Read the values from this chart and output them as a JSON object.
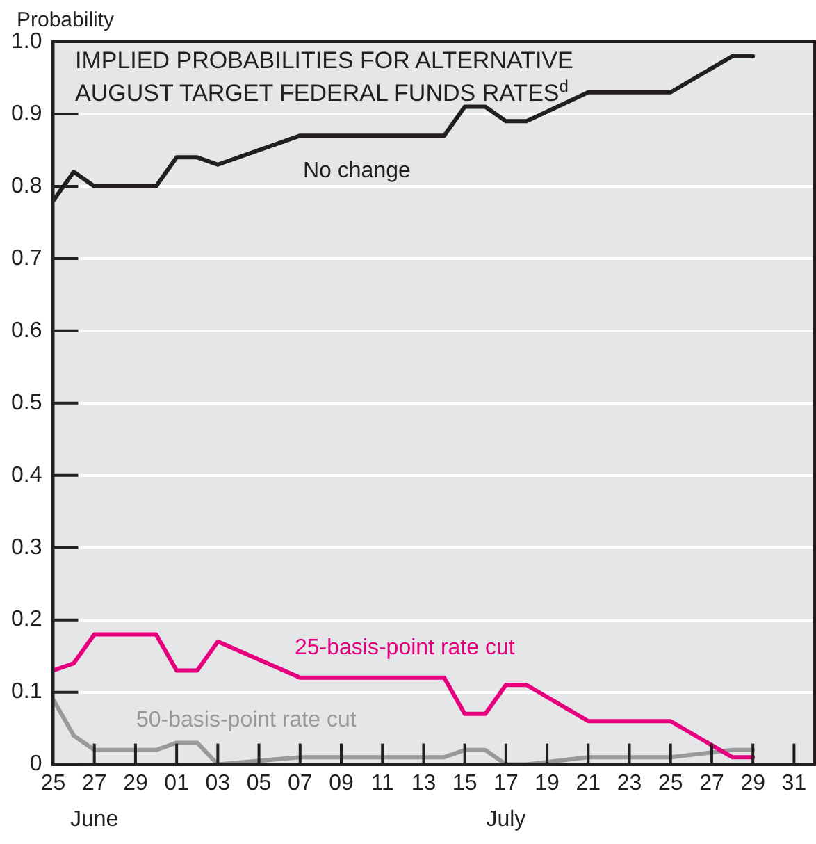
{
  "chart_data": {
    "type": "line",
    "title": "IMPLIED PROBABILITIES FOR ALTERNATIVE AUGUST TARGET FEDERAL FUNDS RATES$^{d}$",
    "ylabel": "Probability",
    "xlim": [
      "--06-25",
      "--08-01"
    ],
    "xticks": [
      {
        "value": "--06-25",
        "label": "25"
      },
      {
        "value": "--06-27",
        "label": "27"
      },
      {
        "value": "--06-29",
        "label": "29"
      },
      {
        "value": "--07-01",
        "label": "01"
      },
      {
        "value": "--07-03",
        "label": "03"
      },
      {
        "value": "--07-05",
        "label": "05"
      },
      {
        "value": "--07-07",
        "label": "07"
      },
      {
        "value": "--07-09",
        "label": "09"
      },
      {
        "value": "--07-11",
        "label": "11"
      },
      {
        "value": "--07-13",
        "label": "13"
      },
      {
        "value": "--07-15",
        "label": "15"
      },
      {
        "value": "--07-17",
        "label": "17"
      },
      {
        "value": "--07-19",
        "label": "19"
      },
      {
        "value": "--07-21",
        "label": "21"
      },
      {
        "value": "--07-23",
        "label": "23"
      },
      {
        "value": "--07-25",
        "label": "25"
      },
      {
        "value": "--07-27",
        "label": "27"
      },
      {
        "value": "--07-29",
        "label": "29"
      },
      {
        "value": "--07-31",
        "label": "31"
      }
    ],
    "ylim": [
      0,
      1
    ],
    "yticks": [
      0,
      {
        "value": 0.1,
        "label": "0.1"
      },
      {
        "value": 0.2,
        "label": "0.2"
      },
      {
        "value": 0.3,
        "label": "0.3"
      },
      {
        "value": 0.4,
        "label": "0.4"
      },
      {
        "value": 0.5,
        "label": "0.5"
      },
      {
        "value": 0.6,
        "label": "0.6"
      },
      {
        "value": 0.7,
        "label": "0.7"
      },
      {
        "value": 0.8,
        "label": "0.8"
      },
      {
        "value": 0.9,
        "label": "0.9"
      },
      {
        "value": 1,
        "label": "1.0"
      }
    ],
    "grid": "y",
    "legend": false,
    "marker": "none",
    "x": [
      "--06-25",
      "--06-26",
      "--06-27",
      "--06-30",
      "--07-01",
      "--07-02",
      "--07-03",
      "--07-07",
      "--07-14",
      "--07-15",
      "--07-16",
      "--07-17",
      "--07-18",
      "--07-21",
      "--07-25",
      "--07-28",
      "--07-29"
    ],
    "series": [
      {
        "name": "No change",
        "color": "#231f20",
        "values": [
          0.78,
          0.82,
          0.8,
          0.8,
          0.84,
          0.84,
          0.83,
          0.87,
          0.87,
          0.91,
          0.91,
          0.89,
          0.89,
          0.93,
          0.93,
          0.98,
          0.98
        ]
      },
      {
        "name": "25-basis-point rate cut",
        "color": "#e6007e",
        "values": [
          0.13,
          0.14,
          0.18,
          0.18,
          0.13,
          0.13,
          0.17,
          0.12,
          0.12,
          0.07,
          0.07,
          0.11,
          0.11,
          0.06,
          0.06,
          0.01,
          0.01
        ]
      },
      {
        "name": "50-basis-point rate cut",
        "color": "#999999",
        "values": [
          0.09,
          0.04,
          0.02,
          0.02,
          0.03,
          0.03,
          0,
          0.01,
          0.01,
          0.02,
          0.02,
          0,
          0,
          0.01,
          0.01,
          0.02,
          0.02
        ]
      }
    ],
    "annotations": [
      "June",
      "July"
    ]
  }
}
